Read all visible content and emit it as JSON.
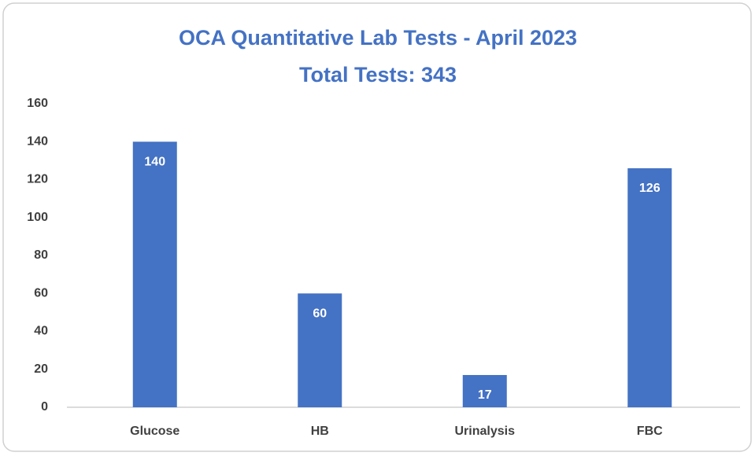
{
  "chart_data": {
    "type": "bar",
    "title": "OCA Quantitative Lab Tests - April 2023",
    "subtitle": "Total Tests: 343",
    "categories": [
      "Glucose",
      "HB",
      "Urinalysis",
      "FBC"
    ],
    "values": [
      140,
      60,
      17,
      126
    ],
    "color": "#4472c4",
    "ylim": [
      0,
      160
    ],
    "yticks": [
      0,
      20,
      40,
      60,
      80,
      100,
      120,
      140,
      160
    ],
    "grid": false
  }
}
